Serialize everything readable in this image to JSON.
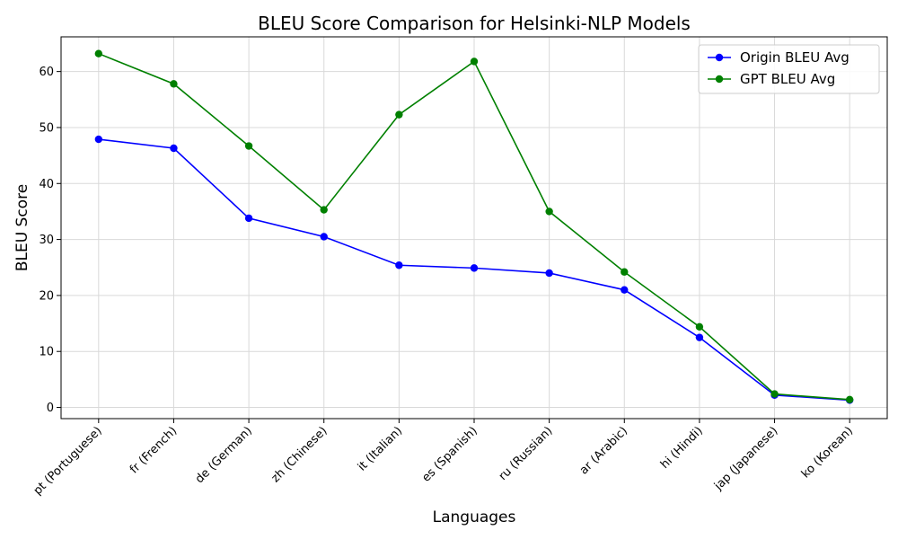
{
  "chart_data": {
    "type": "line",
    "title": "BLEU Score Comparison for Helsinki-NLP Models",
    "xlabel": "Languages",
    "ylabel": "BLEU Score",
    "categories": [
      "pt (Portuguese)",
      "fr (French)",
      "de (German)",
      "zh (Chinese)",
      "it (Italian)",
      "es (Spanish)",
      "ru (Russian)",
      "ar (Arabic)",
      "hi (Hindi)",
      "jap (Japanese)",
      "ko (Korean)"
    ],
    "ylim": [
      -2,
      66.2
    ],
    "yticks": [
      0,
      10,
      20,
      30,
      40,
      50,
      60
    ],
    "grid": true,
    "legend_position": "top-right",
    "series": [
      {
        "name": "Origin BLEU Avg",
        "color": "#0000ff",
        "marker": "circle",
        "values": [
          47.9,
          46.3,
          33.8,
          30.5,
          25.4,
          24.9,
          24.0,
          21.0,
          12.5,
          2.2,
          1.3
        ]
      },
      {
        "name": "GPT BLEU Avg",
        "color": "#008000",
        "marker": "circle",
        "values": [
          63.2,
          57.8,
          46.7,
          35.3,
          52.3,
          61.8,
          35.0,
          24.2,
          14.4,
          2.4,
          1.4
        ]
      }
    ]
  }
}
